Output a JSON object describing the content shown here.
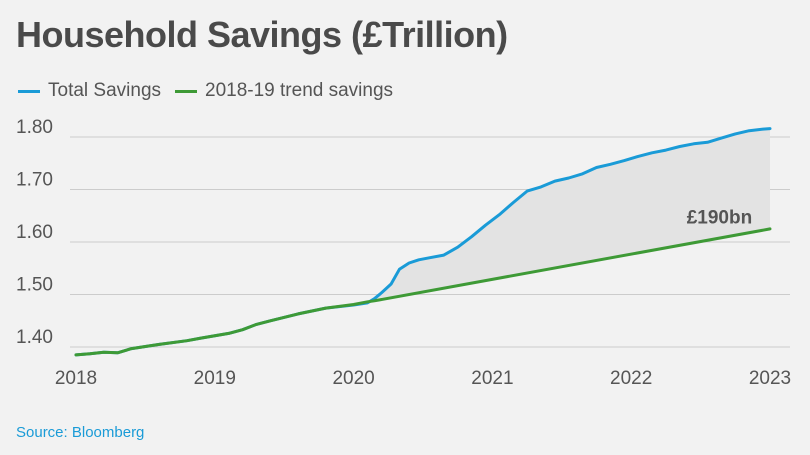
{
  "title": "Household Savings (£Trillion)",
  "legend": {
    "total_label": "Total Savings",
    "trend_label": "2018-19 trend savings"
  },
  "colors": {
    "total": "#1a9bd7",
    "trend": "#3e9a36",
    "gap_fill": "#e3e3e3",
    "text": "#555555"
  },
  "source": "Source: Bloomberg",
  "chart_data": {
    "type": "line",
    "title": "Household Savings (£Trillion)",
    "xlabel": "",
    "ylabel": "",
    "xlim": [
      2018,
      2023
    ],
    "ylim": [
      1.37,
      1.84
    ],
    "y_ticks": [
      1.4,
      1.5,
      1.6,
      1.7,
      1.8
    ],
    "y_tick_labels": [
      "1.40",
      "1.50",
      "1.60",
      "1.70",
      "1.80"
    ],
    "x_ticks": [
      2018,
      2019,
      2020,
      2021,
      2022,
      2023
    ],
    "x_tick_labels": [
      "2018",
      "2019",
      "2020",
      "2021",
      "2022",
      "2023"
    ],
    "grid": "horizontal",
    "annotation": {
      "text": "£190bn",
      "x": 2022.4,
      "y": 1.635
    },
    "series": [
      {
        "name": "Total Savings",
        "x": [
          2018.0,
          2018.1,
          2018.2,
          2018.3,
          2018.4,
          2018.6,
          2018.8,
          2018.9,
          2019.1,
          2019.2,
          2019.3,
          2019.4,
          2019.6,
          2019.8,
          2020.0,
          2020.1,
          2020.15,
          2020.2,
          2020.27,
          2020.33,
          2020.4,
          2020.47,
          2020.55,
          2020.65,
          2020.75,
          2020.85,
          2020.95,
          2021.05,
          2021.15,
          2021.25,
          2021.35,
          2021.45,
          2021.55,
          2021.65,
          2021.75,
          2021.85,
          2021.95,
          2022.05,
          2022.15,
          2022.25,
          2022.35,
          2022.45,
          2022.55,
          2022.65,
          2022.75,
          2022.85,
          2022.95,
          2023.0
        ],
        "values": [
          1.385,
          1.387,
          1.39,
          1.389,
          1.397,
          1.405,
          1.412,
          1.417,
          1.426,
          1.433,
          1.443,
          1.45,
          1.463,
          1.474,
          1.48,
          1.484,
          1.492,
          1.503,
          1.52,
          1.548,
          1.56,
          1.566,
          1.57,
          1.575,
          1.59,
          1.61,
          1.632,
          1.652,
          1.675,
          1.697,
          1.705,
          1.716,
          1.722,
          1.73,
          1.742,
          1.748,
          1.755,
          1.763,
          1.77,
          1.775,
          1.782,
          1.787,
          1.79,
          1.798,
          1.806,
          1.812,
          1.815,
          1.816
        ]
      },
      {
        "name": "2018-19 trend savings",
        "x": [
          2018.0,
          2018.1,
          2018.2,
          2018.3,
          2018.4,
          2018.6,
          2018.8,
          2018.9,
          2019.1,
          2019.2,
          2019.3,
          2019.4,
          2019.6,
          2019.8,
          2020.0,
          2020.1,
          2020.15,
          2023.0
        ],
        "values": [
          1.385,
          1.387,
          1.39,
          1.389,
          1.397,
          1.405,
          1.412,
          1.417,
          1.426,
          1.433,
          1.443,
          1.45,
          1.463,
          1.474,
          1.481,
          1.486,
          1.488,
          1.625
        ]
      }
    ]
  }
}
